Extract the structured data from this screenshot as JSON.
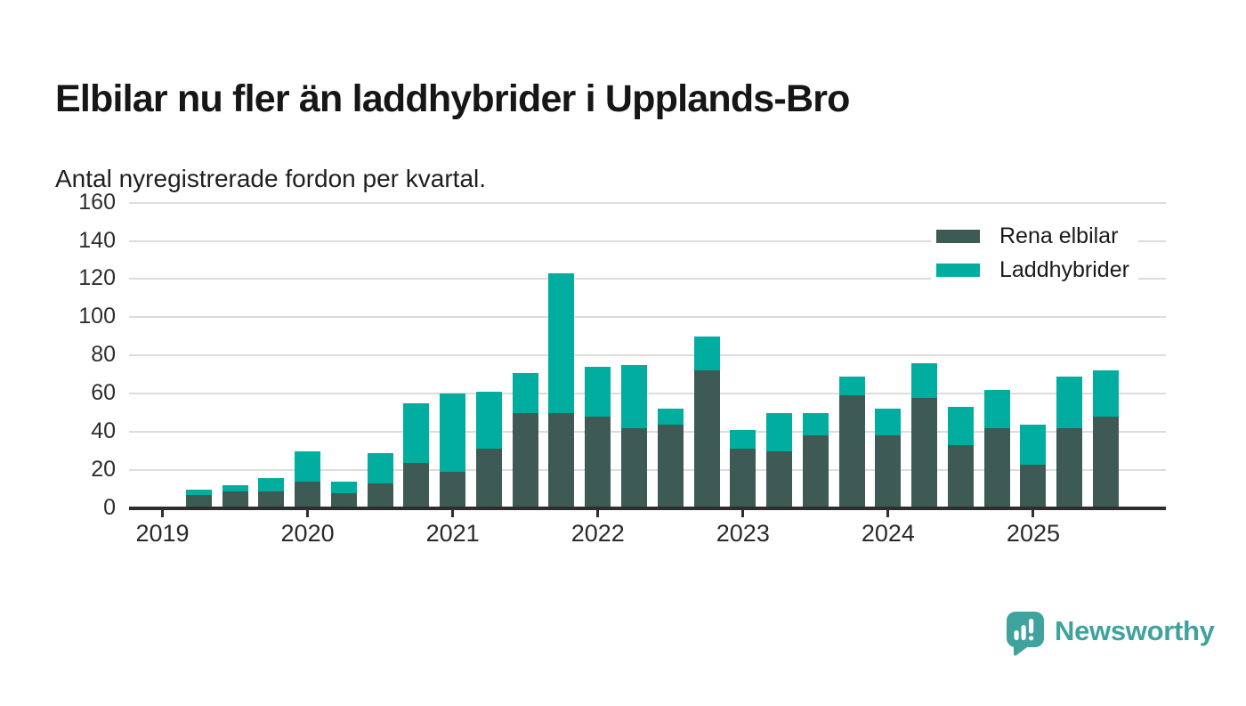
{
  "header": {
    "title": "Elbilar nu fler än laddhybrider i Upplands-Bro",
    "subtitle": "Antal nyregistrerade fordon per kvartal."
  },
  "chart_data": {
    "type": "bar",
    "stacked": true,
    "title": "Elbilar nu fler än laddhybrider i Upplands-Bro",
    "subtitle": "Antal nyregistrerade fordon per kvartal.",
    "categories": [
      "2019 Q1",
      "2019 Q2",
      "2019 Q3",
      "2019 Q4",
      "2020 Q1",
      "2020 Q2",
      "2020 Q3",
      "2020 Q4",
      "2021 Q1",
      "2021 Q2",
      "2021 Q3",
      "2021 Q4",
      "2022 Q1",
      "2022 Q2",
      "2022 Q3",
      "2022 Q4",
      "2023 Q1",
      "2023 Q2",
      "2023 Q3",
      "2023 Q4",
      "2024 Q1",
      "2024 Q2",
      "2024 Q3",
      "2024 Q4",
      "2025 Q1",
      "2025 Q2",
      "2025 Q3"
    ],
    "series": [
      {
        "name": "Rena elbilar",
        "color": "#3d5a54",
        "values": [
          0,
          7,
          9,
          9,
          14,
          8,
          13,
          24,
          19,
          31,
          50,
          50,
          48,
          42,
          44,
          72,
          31,
          30,
          38,
          59,
          38,
          58,
          33,
          42,
          23,
          42,
          48
        ]
      },
      {
        "name": "Laddhybrider",
        "color": "#00ad9f",
        "values": [
          0,
          3,
          3,
          7,
          16,
          6,
          16,
          31,
          41,
          30,
          21,
          73,
          26,
          33,
          8,
          18,
          10,
          20,
          12,
          10,
          14,
          18,
          20,
          20,
          21,
          27,
          24
        ]
      }
    ],
    "x_tick_labels": [
      "2019",
      "2020",
      "2021",
      "2022",
      "2023",
      "2024",
      "2025"
    ],
    "y_tick_labels": [
      "0",
      "20",
      "40",
      "60",
      "80",
      "100",
      "120",
      "140",
      "160"
    ],
    "y_ticks": [
      0,
      20,
      40,
      60,
      80,
      100,
      120,
      140,
      160
    ],
    "ylim": [
      0,
      160
    ],
    "grid": "horizontal",
    "legend_position": "top-right",
    "axis_color": "#2e2e2e",
    "gridline_color": "#dcdcdc"
  },
  "footer": {
    "brand": "Newsworthy",
    "brand_color": "#3fa39d",
    "logo_icon": "bar-chart-speech-bubble-icon"
  }
}
